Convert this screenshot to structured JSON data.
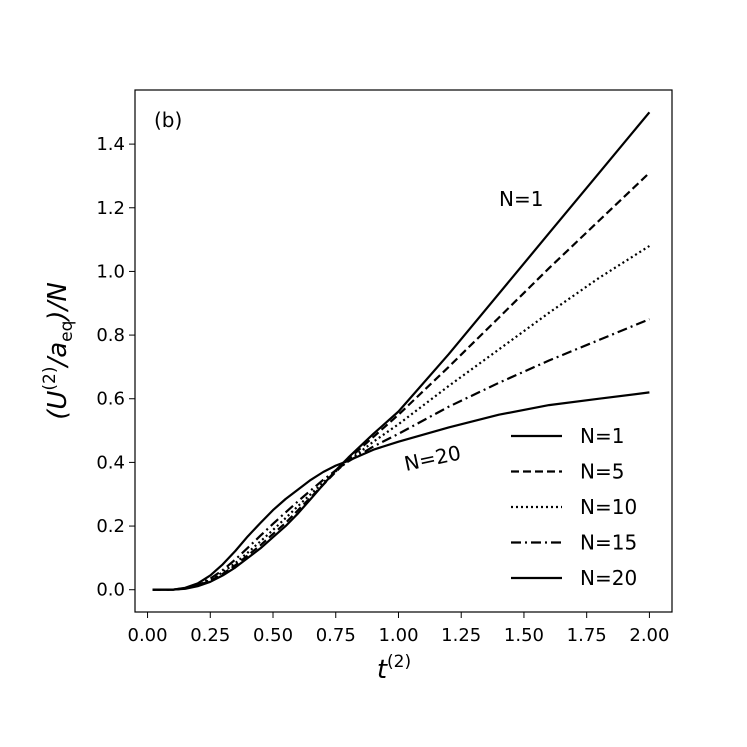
{
  "chart_data": {
    "type": "line",
    "panel_label": "(b)",
    "xlabel": {
      "base": "t",
      "sup": "(2)"
    },
    "ylabel": {
      "prefix": "(U",
      "sup": "(2)",
      "mid": "/a",
      "sub": "eq",
      "suffix": ")/N"
    },
    "xlim": [
      -0.05,
      2.09
    ],
    "ylim": [
      -0.07,
      1.57
    ],
    "xticks": [
      "0.00",
      "0.25",
      "0.50",
      "0.75",
      "1.00",
      "1.25",
      "1.50",
      "1.75",
      "2.00"
    ],
    "xtick_values": [
      0,
      0.25,
      0.5,
      0.75,
      1.0,
      1.25,
      1.5,
      1.75,
      2.0
    ],
    "yticks": [
      "0.0",
      "0.2",
      "0.4",
      "0.6",
      "0.8",
      "1.0",
      "1.2",
      "1.4"
    ],
    "ytick_values": [
      0,
      0.2,
      0.4,
      0.6,
      0.8,
      1.0,
      1.2,
      1.4
    ],
    "grid": false,
    "legend_position": "lower-right",
    "annotations": [
      {
        "text": "N=1",
        "x": 1.4,
        "y": 1.2
      },
      {
        "text": "N=20",
        "x": 1.01,
        "y": 0.39,
        "rotate": -12
      }
    ],
    "series": [
      {
        "name": "N=1",
        "dash": "solid",
        "x": [
          0.02,
          0.1,
          0.15,
          0.2,
          0.25,
          0.3,
          0.35,
          0.4,
          0.45,
          0.5,
          0.55,
          0.6,
          0.65,
          0.7,
          0.75,
          0.8,
          0.9,
          1.0,
          1.2,
          1.4,
          1.6,
          1.8,
          2.0
        ],
        "y": [
          0.0,
          0.0,
          0.003,
          0.011,
          0.025,
          0.045,
          0.07,
          0.1,
          0.13,
          0.165,
          0.2,
          0.24,
          0.285,
          0.33,
          0.375,
          0.415,
          0.49,
          0.56,
          0.74,
          0.93,
          1.12,
          1.31,
          1.5
        ]
      },
      {
        "name": "N=5",
        "dash": "dashed",
        "x": [
          0.02,
          0.1,
          0.15,
          0.2,
          0.25,
          0.3,
          0.35,
          0.4,
          0.45,
          0.5,
          0.55,
          0.6,
          0.65,
          0.7,
          0.75,
          0.8,
          0.9,
          1.0,
          1.2,
          1.4,
          1.6,
          1.8,
          2.0
        ],
        "y": [
          0.0,
          0.0,
          0.004,
          0.013,
          0.028,
          0.05,
          0.077,
          0.108,
          0.14,
          0.175,
          0.21,
          0.25,
          0.29,
          0.33,
          0.37,
          0.41,
          0.48,
          0.55,
          0.7,
          0.855,
          1.01,
          1.16,
          1.31
        ]
      },
      {
        "name": "N=10",
        "dash": "dotted",
        "x": [
          0.02,
          0.1,
          0.15,
          0.2,
          0.25,
          0.3,
          0.35,
          0.4,
          0.45,
          0.5,
          0.55,
          0.6,
          0.65,
          0.7,
          0.75,
          0.8,
          0.9,
          1.0,
          1.2,
          1.4,
          1.6,
          1.8,
          2.0
        ],
        "y": [
          0.0,
          0.0,
          0.004,
          0.014,
          0.031,
          0.055,
          0.084,
          0.117,
          0.152,
          0.188,
          0.225,
          0.263,
          0.3,
          0.337,
          0.372,
          0.405,
          0.465,
          0.52,
          0.64,
          0.755,
          0.87,
          0.98,
          1.08
        ]
      },
      {
        "name": "N=15",
        "dash": "dashdot",
        "x": [
          0.02,
          0.1,
          0.15,
          0.2,
          0.25,
          0.3,
          0.35,
          0.4,
          0.45,
          0.5,
          0.55,
          0.6,
          0.65,
          0.7,
          0.75,
          0.8,
          0.9,
          1.0,
          1.2,
          1.4,
          1.6,
          1.8,
          2.0
        ],
        "y": [
          0.0,
          0.0,
          0.005,
          0.016,
          0.035,
          0.062,
          0.095,
          0.132,
          0.17,
          0.207,
          0.243,
          0.278,
          0.312,
          0.345,
          0.375,
          0.403,
          0.45,
          0.49,
          0.575,
          0.65,
          0.72,
          0.785,
          0.85
        ]
      },
      {
        "name": "N=20",
        "dash": "solid",
        "x": [
          0.02,
          0.1,
          0.15,
          0.2,
          0.25,
          0.3,
          0.35,
          0.4,
          0.45,
          0.5,
          0.55,
          0.6,
          0.65,
          0.7,
          0.75,
          0.8,
          0.9,
          1.0,
          1.2,
          1.4,
          1.6,
          1.8,
          2.0
        ],
        "y": [
          0.0,
          0.0,
          0.006,
          0.02,
          0.045,
          0.08,
          0.122,
          0.168,
          0.21,
          0.25,
          0.285,
          0.315,
          0.345,
          0.37,
          0.39,
          0.405,
          0.44,
          0.465,
          0.51,
          0.55,
          0.58,
          0.6,
          0.62
        ]
      }
    ]
  }
}
